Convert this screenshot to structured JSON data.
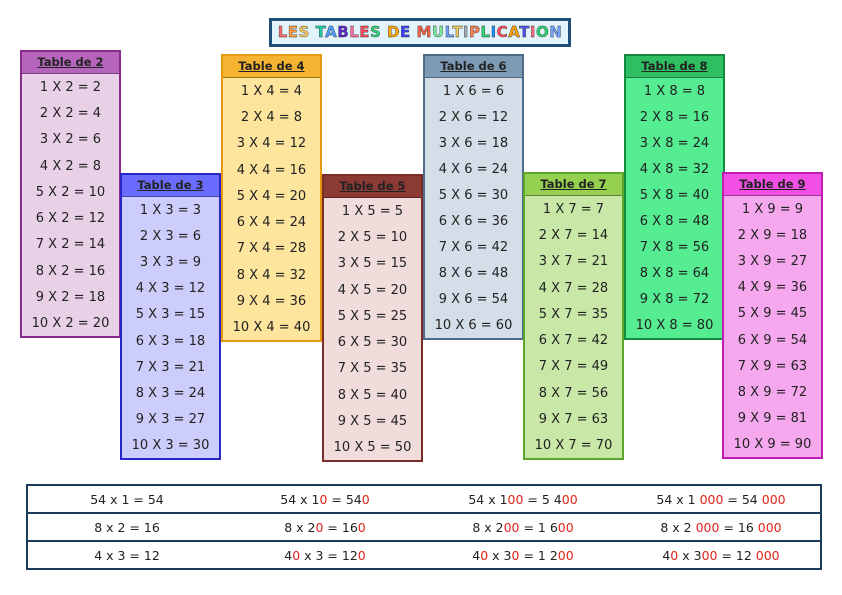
{
  "title": {
    "letters": [
      {
        "ch": "L",
        "color": "#ff6b6b"
      },
      {
        "ch": "E",
        "color": "#ff9f43"
      },
      {
        "ch": "S",
        "color": "#feca57"
      },
      {
        "ch": " ",
        "color": "#000"
      },
      {
        "ch": "T",
        "color": "#1dd1a1"
      },
      {
        "ch": "A",
        "color": "#54a0ff"
      },
      {
        "ch": "B",
        "color": "#5f27cd"
      },
      {
        "ch": "L",
        "color": "#ff6b9d"
      },
      {
        "ch": "E",
        "color": "#ff4757"
      },
      {
        "ch": "S",
        "color": "#2ed573"
      },
      {
        "ch": " ",
        "color": "#000"
      },
      {
        "ch": "D",
        "color": "#ffa502"
      },
      {
        "ch": "E",
        "color": "#3742fa"
      },
      {
        "ch": " ",
        "color": "#000"
      },
      {
        "ch": "M",
        "color": "#ff6348"
      },
      {
        "ch": "U",
        "color": "#7bed9f"
      },
      {
        "ch": "L",
        "color": "#70a1ff"
      },
      {
        "ch": "T",
        "color": "#eccc68"
      },
      {
        "ch": "I",
        "color": "#a4b0be"
      },
      {
        "ch": "P",
        "color": "#ff7f50"
      },
      {
        "ch": "L",
        "color": "#2ed573"
      },
      {
        "ch": "I",
        "color": "#1e90ff"
      },
      {
        "ch": "C",
        "color": "#ff4757"
      },
      {
        "ch": "A",
        "color": "#ffa502"
      },
      {
        "ch": "T",
        "color": "#5352ed"
      },
      {
        "ch": "I",
        "color": "#ff6b81"
      },
      {
        "ch": "O",
        "color": "#2ed573"
      },
      {
        "ch": "N",
        "color": "#70a1ff"
      }
    ]
  },
  "tables": [
    {
      "heading": "Table de  2",
      "head_color": "#b565bb",
      "body_color": "#e8d0e6",
      "border_color": "#8a2b8e",
      "rows": [
        "1 X 2 =  2",
        "2 X 2 =  4",
        "3 X 2 =  6",
        "4 X 2 =  8",
        "5 X 2 =  10",
        "6 X 2 =  12",
        "7 X 2 =  14",
        "8 X 2 =  16",
        "9 X 2 =  18",
        "10 X 2 = 20"
      ]
    },
    {
      "heading": "Table de  3",
      "head_color": "#6a6cff",
      "body_color": "#cccdfb",
      "border_color": "#2626c9",
      "rows": [
        "1 X 3 =  3",
        "2 X 3 =  6",
        "3 X 3 =  9",
        "4 X 3 =  12",
        "5 X 3 =  15",
        "6 X 3 =  18",
        "7 X 3 =  21",
        "8 X 3 =  24",
        "9 X 3 =  27",
        "10 X 3 =  30"
      ]
    },
    {
      "heading": "Table de  4",
      "head_color": "#f4b330",
      "body_color": "#fde59e",
      "border_color": "#e59a0c",
      "rows": [
        "1 X 4 =  4",
        "2 X 4 =  8",
        "3 X 4 =  12",
        "4 X 4 =  16",
        "5 X 4 =  20",
        "6 X 4 =  24",
        "7 X 4 =  28",
        "8 X 4 =  32",
        "9 X 4 =  36",
        "10 X 4 =  40"
      ]
    },
    {
      "heading": "Table de  5",
      "head_color": "#8c3a34",
      "body_color": "#f1dcdc",
      "border_color": "#7a2d28",
      "rows": [
        "1 X 5 =  5",
        "2 X 5 =  10",
        "3 X 5 =  15",
        "4 X 5 =  20",
        "5 X 5 =  25",
        "6 X 5 =  30",
        "7 X 5 =  35",
        "8 X 5 =  40",
        "9 X 5 =  45",
        "10 X 5 =  50"
      ]
    },
    {
      "heading": "Table de  6",
      "head_color": "#7e9bb5",
      "body_color": "#d4dee8",
      "border_color": "#4e6c8a",
      "rows": [
        "1 X 6 =  6",
        "2 X 6 =  12",
        "3 X 6 =  18",
        "4 X 6 =  24",
        "5 X 6 =  30",
        "6 X 6 =  36",
        "7 X 6 =  42",
        "8 X 6 =  48",
        "9 X 6 =  54",
        "10 X 6 =  60"
      ]
    },
    {
      "heading": "Table de  7",
      "head_color": "#96d050",
      "body_color": "#c9e8a7",
      "border_color": "#5da52b",
      "rows": [
        "1 X 7 =  7",
        "2 X 7 =  14",
        "3 X 7 =  21",
        "4 X 7 =  28",
        "5 X 7 =  35",
        "6 X 7 =  42",
        "7 X 7 =  49",
        "8 X 7 =  56",
        "9 X 7 =  63",
        "10 X 7 =  70"
      ]
    },
    {
      "heading": "Table de  8",
      "head_color": "#2fbf62",
      "body_color": "#55ec92",
      "border_color": "#138a3f",
      "rows": [
        "1 X 8 =  8",
        "2 X 8 =  16",
        "3 X 8 =  24",
        "4 X 8 =  32",
        "5 X 8 =  40",
        "6 X 8 =  48",
        "7 X 8 =  56",
        "8 X 8 =  64",
        "9 X 8 =  72",
        "10 X 8 =  80"
      ]
    },
    {
      "heading": "Table de  9",
      "head_color": "#f24fe4",
      "body_color": "#f6a8ef",
      "border_color": "#c11db4",
      "rows": [
        "1 X 9 =  9",
        "2 X 9 =  18",
        "3 X 9 =  27",
        "4 X 9 =  36",
        "5 X 9 =  45",
        "6 X 9 =  54",
        "7 X 9 =  63",
        "8 X 9 =  72",
        "9 X 9 =  81",
        "10 X 9 =  90"
      ]
    }
  ],
  "bottom_table": {
    "rows": [
      [
        [
          {
            "t": "54 x 1 = 54"
          }
        ],
        [
          {
            "t": "54 x 1"
          },
          {
            "t": "0",
            "red": true
          },
          {
            "t": " = 54"
          },
          {
            "t": "0",
            "red": true
          }
        ],
        [
          {
            "t": "54 x 1"
          },
          {
            "t": "00",
            "red": true
          },
          {
            "t": " = 5 4"
          },
          {
            "t": "00",
            "red": true
          }
        ],
        [
          {
            "t": "54 x 1 "
          },
          {
            "t": "000",
            "red": true
          },
          {
            "t": " = 54 "
          },
          {
            "t": "000",
            "red": true
          }
        ]
      ],
      [
        [
          {
            "t": "8 x 2 = 16"
          }
        ],
        [
          {
            "t": "8 x 2"
          },
          {
            "t": "0",
            "red": true
          },
          {
            "t": " = 16"
          },
          {
            "t": "0",
            "red": true
          }
        ],
        [
          {
            "t": "8 x 2"
          },
          {
            "t": "00",
            "red": true
          },
          {
            "t": " = 1 6"
          },
          {
            "t": "00",
            "red": true
          }
        ],
        [
          {
            "t": "8 x 2 "
          },
          {
            "t": "000",
            "red": true
          },
          {
            "t": " = 16 "
          },
          {
            "t": "000",
            "red": true
          }
        ]
      ],
      [
        [
          {
            "t": "4 x 3 = 12"
          }
        ],
        [
          {
            "t": "4"
          },
          {
            "t": "0",
            "red": true
          },
          {
            "t": " x 3 = 12"
          },
          {
            "t": "0",
            "red": true
          }
        ],
        [
          {
            "t": "4"
          },
          {
            "t": "0",
            "red": true
          },
          {
            "t": " x 3"
          },
          {
            "t": "0",
            "red": true
          },
          {
            "t": " = 1 2"
          },
          {
            "t": "00",
            "red": true
          }
        ],
        [
          {
            "t": "4"
          },
          {
            "t": "0",
            "red": true
          },
          {
            "t": " x 3"
          },
          {
            "t": "00",
            "red": true
          },
          {
            "t": " = 12 "
          },
          {
            "t": "000",
            "red": true
          }
        ]
      ]
    ]
  }
}
